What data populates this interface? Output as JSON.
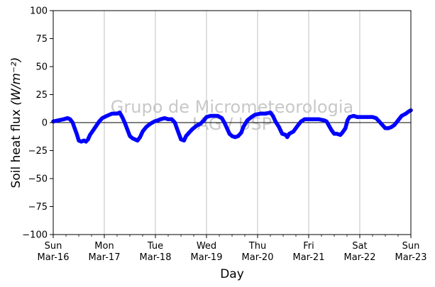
{
  "chart_data": {
    "type": "line",
    "xlabel": "Day",
    "ylabel": "Soil heat flux",
    "ylabel_unit": "(W/m⁻²)",
    "ylim": [
      -100,
      100
    ],
    "xlim": [
      0,
      7
    ],
    "yticks": [
      -100,
      -75,
      -50,
      -25,
      0,
      25,
      50,
      75,
      100
    ],
    "xticks": [
      {
        "x": 0,
        "day": "Sun",
        "date": "Mar-16"
      },
      {
        "x": 1,
        "day": "Mon",
        "date": "Mar-17"
      },
      {
        "x": 2,
        "day": "Tue",
        "date": "Mar-18"
      },
      {
        "x": 3,
        "day": "Wed",
        "date": "Mar-19"
      },
      {
        "x": 4,
        "day": "Thu",
        "date": "Mar-20"
      },
      {
        "x": 5,
        "day": "Fri",
        "date": "Mar-21"
      },
      {
        "x": 6,
        "day": "Sat",
        "date": "Mar-22"
      },
      {
        "x": 7,
        "day": "Sun",
        "date": "Mar-23"
      }
    ],
    "grid_x": true,
    "zero_line": true,
    "watermark": [
      "Grupo de Micrometeorologia",
      "IAG / USP"
    ],
    "series": [
      {
        "color": "#0000ff",
        "points": [
          [
            0.0,
            1
          ],
          [
            0.1,
            2
          ],
          [
            0.2,
            3
          ],
          [
            0.28,
            4
          ],
          [
            0.33,
            3
          ],
          [
            0.38,
            0
          ],
          [
            0.42,
            -5
          ],
          [
            0.46,
            -10
          ],
          [
            0.5,
            -16
          ],
          [
            0.55,
            -17
          ],
          [
            0.6,
            -16
          ],
          [
            0.64,
            -17
          ],
          [
            0.68,
            -15
          ],
          [
            0.72,
            -11
          ],
          [
            0.78,
            -7
          ],
          [
            0.84,
            -3
          ],
          [
            0.9,
            1
          ],
          [
            0.96,
            4
          ],
          [
            1.05,
            6
          ],
          [
            1.15,
            8
          ],
          [
            1.25,
            8
          ],
          [
            1.3,
            9
          ],
          [
            1.35,
            5
          ],
          [
            1.4,
            0
          ],
          [
            1.45,
            -6
          ],
          [
            1.5,
            -12
          ],
          [
            1.55,
            -14
          ],
          [
            1.6,
            -15
          ],
          [
            1.65,
            -16
          ],
          [
            1.7,
            -13
          ],
          [
            1.75,
            -8
          ],
          [
            1.82,
            -4
          ],
          [
            1.9,
            -1
          ],
          [
            1.98,
            1
          ],
          [
            2.05,
            2
          ],
          [
            2.1,
            3
          ],
          [
            2.18,
            4
          ],
          [
            2.25,
            3
          ],
          [
            2.32,
            3
          ],
          [
            2.38,
            0
          ],
          [
            2.42,
            -5
          ],
          [
            2.46,
            -10
          ],
          [
            2.5,
            -15
          ],
          [
            2.56,
            -16
          ],
          [
            2.6,
            -12
          ],
          [
            2.66,
            -9
          ],
          [
            2.72,
            -6
          ],
          [
            2.8,
            -3
          ],
          [
            2.88,
            -1
          ],
          [
            2.95,
            2
          ],
          [
            3.0,
            5
          ],
          [
            3.08,
            6
          ],
          [
            3.15,
            6
          ],
          [
            3.22,
            6
          ],
          [
            3.3,
            4
          ],
          [
            3.35,
            0
          ],
          [
            3.4,
            -5
          ],
          [
            3.45,
            -10
          ],
          [
            3.5,
            -12
          ],
          [
            3.56,
            -13
          ],
          [
            3.62,
            -12
          ],
          [
            3.68,
            -9
          ],
          [
            3.72,
            -4
          ],
          [
            3.8,
            2
          ],
          [
            3.88,
            5
          ],
          [
            3.95,
            7
          ],
          [
            4.05,
            8
          ],
          [
            4.15,
            8
          ],
          [
            4.25,
            9
          ],
          [
            4.3,
            6
          ],
          [
            4.35,
            1
          ],
          [
            4.42,
            -4
          ],
          [
            4.48,
            -10
          ],
          [
            4.55,
            -11
          ],
          [
            4.58,
            -13
          ],
          [
            4.62,
            -10
          ],
          [
            4.7,
            -8
          ],
          [
            4.78,
            -3
          ],
          [
            4.85,
            1
          ],
          [
            4.92,
            3
          ],
          [
            5.0,
            3
          ],
          [
            5.1,
            3
          ],
          [
            5.2,
            3
          ],
          [
            5.3,
            2
          ],
          [
            5.35,
            1
          ],
          [
            5.4,
            -3
          ],
          [
            5.45,
            -7
          ],
          [
            5.5,
            -10
          ],
          [
            5.55,
            -10
          ],
          [
            5.62,
            -11
          ],
          [
            5.66,
            -9
          ],
          [
            5.72,
            -5
          ],
          [
            5.76,
            2
          ],
          [
            5.8,
            5
          ],
          [
            5.88,
            6
          ],
          [
            5.95,
            5
          ],
          [
            6.05,
            5
          ],
          [
            6.15,
            5
          ],
          [
            6.25,
            5
          ],
          [
            6.32,
            4
          ],
          [
            6.38,
            1
          ],
          [
            6.44,
            -2
          ],
          [
            6.5,
            -5
          ],
          [
            6.56,
            -5
          ],
          [
            6.62,
            -4
          ],
          [
            6.68,
            -2
          ],
          [
            6.75,
            2
          ],
          [
            6.82,
            6
          ],
          [
            6.9,
            8
          ],
          [
            6.96,
            10
          ],
          [
            7.0,
            11
          ]
        ]
      }
    ]
  }
}
